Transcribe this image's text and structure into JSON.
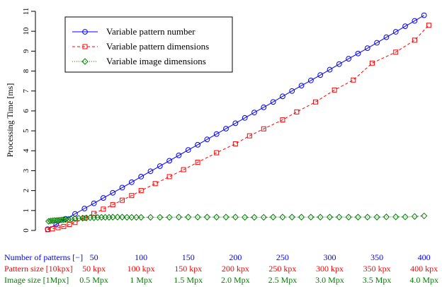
{
  "chart_data": {
    "type": "line",
    "ylabel": "Processing Time [ms]",
    "xlim": [
      0,
      410
    ],
    "ylim": [
      0,
      11
    ],
    "yticks": [
      0,
      1,
      2,
      3,
      4,
      5,
      6,
      7,
      8,
      9,
      10,
      11
    ],
    "grid": false,
    "legend_position": "top-left",
    "series": [
      {
        "name": "Variable pattern number",
        "color": "#0000ff",
        "marker": "circle",
        "line": "solid",
        "x": [
          1,
          10,
          20,
          30,
          40,
          50,
          60,
          70,
          80,
          90,
          100,
          110,
          120,
          130,
          140,
          150,
          160,
          170,
          180,
          190,
          200,
          210,
          220,
          230,
          240,
          250,
          260,
          270,
          280,
          290,
          300,
          310,
          320,
          330,
          340,
          350,
          360,
          370,
          380,
          390,
          400
        ],
        "y": [
          0.06,
          0.3,
          0.58,
          0.83,
          1.1,
          1.36,
          1.63,
          1.89,
          2.15,
          2.42,
          2.7,
          2.97,
          3.23,
          3.5,
          3.77,
          4.04,
          4.3,
          4.57,
          4.84,
          5.11,
          5.38,
          5.65,
          5.92,
          6.18,
          6.45,
          6.73,
          7.0,
          7.27,
          7.53,
          7.8,
          8.07,
          8.35,
          8.62,
          8.88,
          9.15,
          9.42,
          9.7,
          9.97,
          10.25,
          10.52,
          10.8
        ]
      },
      {
        "name": "Variable pattern dimensions",
        "color": "#ff0000",
        "marker": "square",
        "line": "dashed",
        "x": [
          1,
          6,
          12,
          18,
          24,
          30,
          40,
          50,
          60,
          70,
          80,
          90,
          100,
          115,
          130,
          145,
          160,
          180,
          200,
          215,
          230,
          250,
          265,
          285,
          305,
          325,
          345,
          370,
          390,
          405
        ],
        "y": [
          0.04,
          0.08,
          0.14,
          0.2,
          0.3,
          0.4,
          0.62,
          0.85,
          1.07,
          1.29,
          1.52,
          1.75,
          2.0,
          2.35,
          2.7,
          3.05,
          3.42,
          3.9,
          4.35,
          4.75,
          5.1,
          5.55,
          5.95,
          6.45,
          7.05,
          7.55,
          8.4,
          8.95,
          9.55,
          10.3
        ]
      },
      {
        "name": "Variable image dimensions",
        "color": "#008000",
        "marker": "diamond",
        "line": "dotted",
        "x": [
          2,
          4,
          6,
          8,
          10,
          12,
          14,
          16,
          18,
          20,
          23,
          26,
          30,
          34,
          38,
          42,
          46,
          50,
          54,
          58,
          62,
          66,
          70,
          75,
          80,
          85,
          90,
          95,
          100,
          110,
          120,
          130,
          140,
          150,
          160,
          170,
          180,
          190,
          200,
          210,
          220,
          230,
          240,
          250,
          260,
          270,
          280,
          290,
          300,
          310,
          320,
          330,
          340,
          350,
          360,
          370,
          380,
          390,
          400
        ],
        "y": [
          0.46,
          0.48,
          0.49,
          0.5,
          0.5,
          0.51,
          0.52,
          0.53,
          0.54,
          0.55,
          0.56,
          0.57,
          0.59,
          0.61,
          0.62,
          0.63,
          0.64,
          0.64,
          0.65,
          0.66,
          0.66,
          0.66,
          0.67,
          0.67,
          0.67,
          0.66,
          0.66,
          0.66,
          0.66,
          0.66,
          0.66,
          0.66,
          0.67,
          0.67,
          0.67,
          0.67,
          0.67,
          0.67,
          0.67,
          0.66,
          0.66,
          0.66,
          0.67,
          0.67,
          0.67,
          0.67,
          0.67,
          0.67,
          0.67,
          0.67,
          0.67,
          0.67,
          0.67,
          0.67,
          0.68,
          0.68,
          0.68,
          0.7,
          0.73
        ]
      }
    ],
    "x_axis_rows": [
      {
        "label": "Number of patterns [−]",
        "color": "#0000ff",
        "ticks": [
          "50",
          "100",
          "150",
          "200",
          "250",
          "300",
          "350",
          "400"
        ]
      },
      {
        "label": "Pattern size [10kpx]",
        "color": "#ff0000",
        "ticks": [
          "50 kpx",
          "100 kpx",
          "150 kpx",
          "200 kpx",
          "250 kpx",
          "300 kpx",
          "350 kpx",
          "400 kpx"
        ]
      },
      {
        "label": "Image size [1Mpx]",
        "color": "#008000",
        "ticks": [
          "0.5 Mpx",
          "1 Mpx",
          "1.5 Mpx",
          "2.0 Mpx",
          "2.5 Mpx",
          "3.0 Mpx",
          "3.5 Mpx",
          "4.0 Mpx"
        ]
      }
    ],
    "tick_positions": [
      50,
      100,
      150,
      200,
      250,
      300,
      350,
      400
    ]
  }
}
